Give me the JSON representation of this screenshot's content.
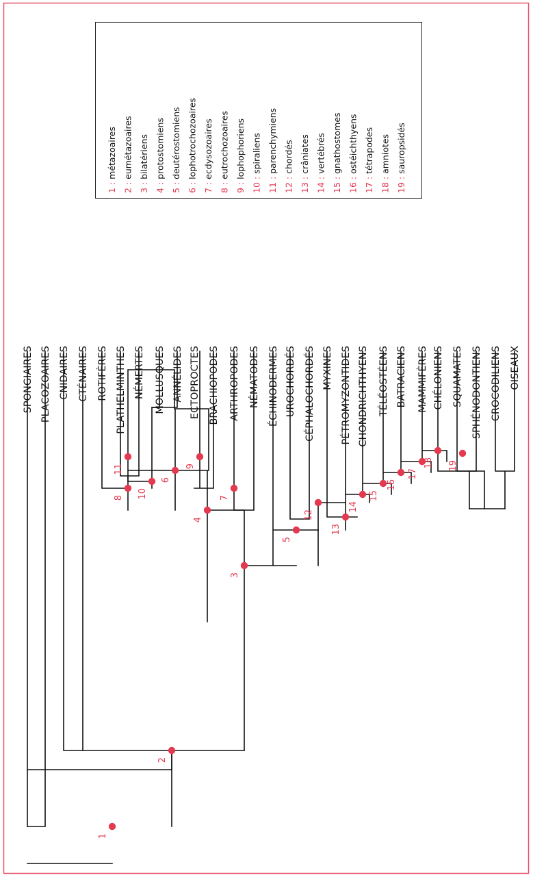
{
  "colors": {
    "frame": "#e8506a",
    "accent": "#e5394f",
    "line": "#111111",
    "text": "#111111",
    "legend_border": "#222222"
  },
  "taxa": [
    "SPONGIAIRES",
    "PLACOZOAIRES",
    "CNIDAIRES",
    "CTÉNAIRES",
    "ROTIFÈRES",
    "PLATHELMINTHES",
    "NÉMERTES",
    "MOLLUSQUES",
    "ANNÉLIDES",
    "ECTOPROCTES",
    "BRACHIOPODES",
    "ARTHROPODES",
    "NÉMATODES",
    "ÉCHINODERMES",
    "UROCHORDÉS",
    "CÉPHALOCHORDÉS",
    "MYXINES",
    "PÉTROMYZONTIDES",
    "CHONDRICHTHYENS",
    "TÉLÉOSTÉENS",
    "BATRACIENS",
    "MAMMIFÈRES",
    "CHÉLONIENS",
    "SQUAMATES",
    "SPHÉNODONTIENS",
    "CROCODILIENS",
    "OISEAUX"
  ],
  "nodes": [
    "1",
    "2",
    "3",
    "4",
    "5",
    "6",
    "7",
    "8",
    "9",
    "10",
    "11",
    "12",
    "13",
    "14",
    "15",
    "16",
    "17",
    "18",
    "19"
  ],
  "legend": [
    {
      "num": "1 :",
      "name": "métazoaires"
    },
    {
      "num": "2 :",
      "name": "eumétazoaires"
    },
    {
      "num": "3 :",
      "name": "bilatériens"
    },
    {
      "num": "4 :",
      "name": "protostomiens"
    },
    {
      "num": "5 :",
      "name": "deutérostomiens"
    },
    {
      "num": "6 :",
      "name": "lophotrochozoaires"
    },
    {
      "num": "7 :",
      "name": "ecdysozoaires"
    },
    {
      "num": "8 :",
      "name": "eutrochozoaires"
    },
    {
      "num": "9 :",
      "name": "lophophoriens"
    },
    {
      "num": "10 :",
      "name": "spiraliens"
    },
    {
      "num": "11 :",
      "name": "parenchymiens"
    },
    {
      "num": "12 :",
      "name": "chordés"
    },
    {
      "num": "13 :",
      "name": "crâniates"
    },
    {
      "num": "14 :",
      "name": "vertébrés"
    },
    {
      "num": "15 :",
      "name": "gnathostomes"
    },
    {
      "num": "16 :",
      "name": "ostéichthyens"
    },
    {
      "num": "17 :",
      "name": "tétrapodes"
    },
    {
      "num": "18 :",
      "name": "amniotes"
    },
    {
      "num": "19 :",
      "name": "sauropsidés"
    }
  ]
}
